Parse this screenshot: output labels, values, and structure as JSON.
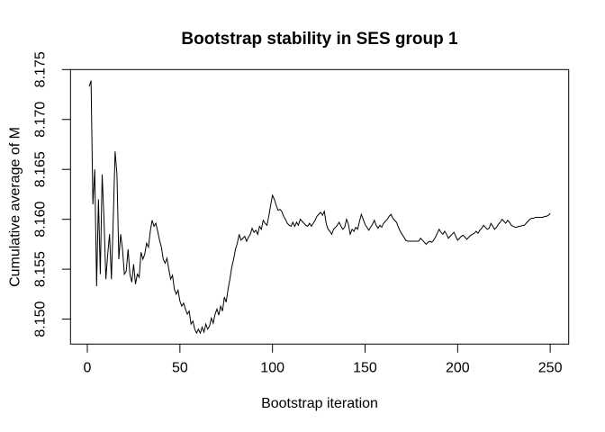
{
  "figure": {
    "background": "#ffffff",
    "foreground": "#000000"
  },
  "chart_data": {
    "type": "line",
    "title": "Bootstrap stability in SES group 1",
    "xlabel": "Bootstrap iteration",
    "ylabel": "Cumulative average of M",
    "x_ticks": [
      "0",
      "50",
      "100",
      "150",
      "200",
      "250"
    ],
    "y_ticks": [
      "8.150",
      "8.155",
      "8.160",
      "8.165",
      "8.170",
      "8.175"
    ],
    "xlim": [
      -9.1,
      260.0
    ],
    "ylim": [
      8.1475,
      8.175
    ],
    "grid": false,
    "legend": "none",
    "line_color": "#000000",
    "series": [
      {
        "name": "cumulative-average-of-M",
        "x_start": 1,
        "x_step": 1,
        "values": [
          8.1733,
          8.1739,
          8.1615,
          8.165,
          8.1533,
          8.162,
          8.1545,
          8.1645,
          8.16,
          8.154,
          8.1565,
          8.1585,
          8.154,
          8.16,
          8.1668,
          8.1645,
          8.156,
          8.1585,
          8.157,
          8.1545,
          8.1548,
          8.157,
          8.1545,
          8.1537,
          8.1555,
          8.1535,
          8.1545,
          8.1542,
          8.1567,
          8.156,
          8.1565,
          8.1576,
          8.1572,
          8.1588,
          8.1599,
          8.1593,
          8.1596,
          8.1588,
          8.1579,
          8.1572,
          8.156,
          8.1556,
          8.1561,
          8.155,
          8.154,
          8.1544,
          8.153,
          8.1525,
          8.1529,
          8.1518,
          8.1513,
          8.1516,
          8.151,
          8.1505,
          8.1508,
          8.1495,
          8.1498,
          8.149,
          8.1486,
          8.149,
          8.1486,
          8.1492,
          8.1487,
          8.1495,
          8.149,
          8.1493,
          8.1501,
          8.1496,
          8.1505,
          8.151,
          8.1504,
          8.1513,
          8.1508,
          8.1522,
          8.1517,
          8.153,
          8.154,
          8.1552,
          8.156,
          8.157,
          8.1576,
          8.1585,
          8.1579,
          8.1581,
          8.1583,
          8.1578,
          8.1582,
          8.1585,
          8.1591,
          8.1587,
          8.1589,
          8.1585,
          8.1593,
          8.159,
          8.1599,
          8.1596,
          8.1594,
          8.1603,
          8.1614,
          8.1624,
          8.162,
          8.1614,
          8.1609,
          8.161,
          8.1608,
          8.1603,
          8.16,
          8.1596,
          8.1594,
          8.1593,
          8.1597,
          8.1593,
          8.1597,
          8.1594,
          8.16,
          8.1598,
          8.1596,
          8.1594,
          8.1593,
          8.1596,
          8.1593,
          8.1596,
          8.1599,
          8.1603,
          8.1605,
          8.1607,
          8.1604,
          8.1608,
          8.1596,
          8.159,
          8.1588,
          8.1585,
          8.159,
          8.1592,
          8.1594,
          8.1597,
          8.1593,
          8.159,
          8.1592,
          8.16,
          8.1595,
          8.1585,
          8.159,
          8.1588,
          8.1592,
          8.159,
          8.1598,
          8.1605,
          8.16,
          8.1595,
          8.1592,
          8.1589,
          8.1592,
          8.1595,
          8.1599,
          8.1594,
          8.1591,
          8.1594,
          8.1592,
          8.1596,
          8.1598,
          8.16,
          8.1603,
          8.1605,
          8.1601,
          8.1599,
          8.1597,
          8.1592,
          8.1588,
          8.1585,
          8.1582,
          8.1579,
          8.1578,
          8.1578,
          8.1578,
          8.1578,
          8.1578,
          8.1578,
          8.1578,
          8.1581,
          8.1579,
          8.1577,
          8.1575,
          8.1577,
          8.1578,
          8.1577,
          8.1579,
          8.1582,
          8.1586,
          8.159,
          8.1587,
          8.1585,
          8.1588,
          8.1585,
          8.1581,
          8.1583,
          8.1585,
          8.1587,
          8.1583,
          8.1579,
          8.1581,
          8.1583,
          8.1584,
          8.1582,
          8.158,
          8.1582,
          8.1584,
          8.1585,
          8.1586,
          8.1588,
          8.1586,
          8.1589,
          8.1591,
          8.1594,
          8.1592,
          8.159,
          8.1591,
          8.1596,
          8.1593,
          8.159,
          8.1592,
          8.1595,
          8.1597,
          8.16,
          8.1598,
          8.1596,
          8.1599,
          8.1597,
          8.1594,
          8.1593,
          8.1592,
          8.1592,
          8.1593,
          8.1593,
          8.1594,
          8.1594,
          8.1596,
          8.1598,
          8.16,
          8.1601,
          8.1601,
          8.1602,
          8.1602,
          8.1602,
          8.1602,
          8.1602,
          8.1603,
          8.1603,
          8.1604,
          8.1606
        ]
      }
    ]
  }
}
